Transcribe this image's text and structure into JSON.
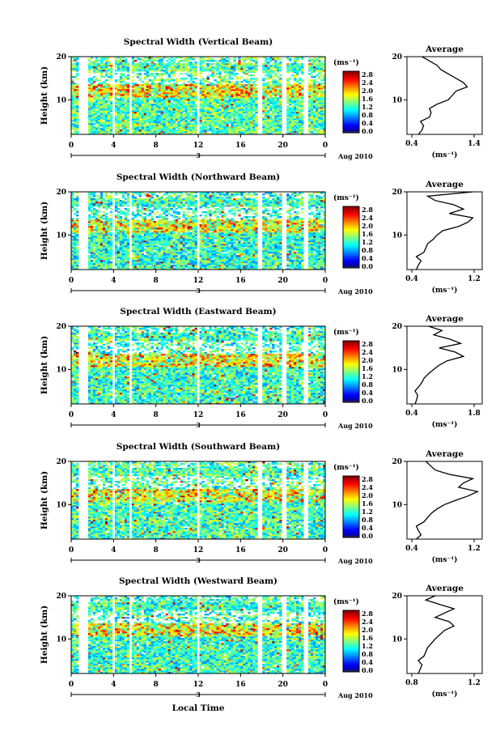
{
  "figure": {
    "common": {
      "ylabel": "Height (km)",
      "colorbar_unit": "(ms⁻¹)",
      "colorbar_ticks": [
        "0.0",
        "0.4",
        "0.8",
        "1.2",
        "1.6",
        "2.0",
        "2.4",
        "2.8"
      ],
      "x_ticks": [
        "0",
        "4",
        "8",
        "12",
        "16",
        "20",
        "0"
      ],
      "y_ticks": [
        "10",
        "20"
      ],
      "day_label": "3",
      "date_label": "Aug 2010",
      "xlabel": "Local Time",
      "avg_title": "Average",
      "avg_unit": "(ms⁻¹)"
    }
  },
  "chart_data": [
    {
      "type": "heatmap",
      "title": "Spectral Width (Vertical Beam)",
      "ylabel": "Height (km)",
      "xlim": [
        0,
        24
      ],
      "ylim": [
        2,
        20
      ],
      "clim": [
        0.0,
        3.0
      ],
      "colormap": "jet",
      "data_gaps_hours": [
        [
          0.8,
          1.6
        ],
        [
          3.9,
          4.2
        ],
        [
          5.4,
          5.8
        ],
        [
          11.8,
          12.2
        ],
        [
          17.6,
          18.0
        ],
        [
          19.8,
          20.4
        ],
        [
          22.0,
          22.3
        ]
      ],
      "mean_level": 0.45,
      "average_profile": {
        "title": "Average",
        "xlabel": "(ms⁻¹)",
        "x_ticks": [
          "0.4",
          "1.4"
        ],
        "xlim": [
          0.4,
          1.4
        ],
        "ylim": [
          2,
          20
        ],
        "heights": [
          2,
          3,
          4,
          5,
          6,
          7,
          8,
          9,
          10,
          11,
          12,
          13,
          14,
          15,
          16,
          17,
          18,
          19,
          20
        ],
        "values": [
          0.55,
          0.6,
          0.62,
          0.58,
          0.7,
          0.72,
          0.7,
          0.8,
          0.95,
          1.0,
          1.05,
          1.2,
          1.15,
          1.05,
          0.95,
          0.85,
          0.8,
          0.7,
          0.6
        ]
      }
    },
    {
      "type": "heatmap",
      "title": "Spectral Width (Northward Beam)",
      "ylabel": "Height (km)",
      "xlim": [
        0,
        24
      ],
      "ylim": [
        2,
        20
      ],
      "clim": [
        0.0,
        3.0
      ],
      "colormap": "jet",
      "data_gaps_hours": [
        [
          0.8,
          1.6
        ],
        [
          3.9,
          4.2
        ],
        [
          5.4,
          5.8
        ],
        [
          11.8,
          12.2
        ],
        [
          17.6,
          18.0
        ],
        [
          19.8,
          20.4
        ],
        [
          22.0,
          22.3
        ]
      ],
      "mean_level": 0.42,
      "average_profile": {
        "title": "Average",
        "xlabel": "(ms⁻¹)",
        "x_ticks": [
          "0.4",
          "1.2"
        ],
        "xlim": [
          0.4,
          1.2
        ],
        "ylim": [
          2,
          20
        ],
        "heights": [
          2,
          3,
          4,
          5,
          6,
          7,
          8,
          9,
          10,
          11,
          12,
          13,
          14,
          15,
          16,
          17,
          18,
          19,
          20
        ],
        "values": [
          0.5,
          0.52,
          0.55,
          0.5,
          0.58,
          0.6,
          0.62,
          0.68,
          0.72,
          0.78,
          0.95,
          1.05,
          1.1,
          0.85,
          1.0,
          0.9,
          0.7,
          0.62,
          1.1
        ]
      }
    },
    {
      "type": "heatmap",
      "title": "Spectral Width (Eastward Beam)",
      "ylabel": "Height (km)",
      "xlim": [
        0,
        24
      ],
      "ylim": [
        2,
        20
      ],
      "clim": [
        0.0,
        3.0
      ],
      "colormap": "jet",
      "data_gaps_hours": [
        [
          0.8,
          1.6
        ],
        [
          3.9,
          4.2
        ],
        [
          5.4,
          5.8
        ],
        [
          11.8,
          12.2
        ],
        [
          17.6,
          18.0
        ],
        [
          19.8,
          20.4
        ],
        [
          22.0,
          22.3
        ]
      ],
      "mean_level": 0.43,
      "average_profile": {
        "title": "Average",
        "xlabel": "(ms⁻¹)",
        "x_ticks": [
          "0.4",
          "1.8"
        ],
        "xlim": [
          0.4,
          1.8
        ],
        "ylim": [
          2,
          20
        ],
        "heights": [
          2,
          3,
          4,
          5,
          6,
          7,
          8,
          9,
          10,
          11,
          12,
          13,
          14,
          15,
          16,
          17,
          18,
          19,
          20
        ],
        "values": [
          0.55,
          0.58,
          0.6,
          0.55,
          0.62,
          0.68,
          0.72,
          0.8,
          0.9,
          1.0,
          1.15,
          1.45,
          1.3,
          1.0,
          1.4,
          1.2,
          0.9,
          1.05,
          0.8
        ]
      }
    },
    {
      "type": "heatmap",
      "title": "Spectral Width (Southward Beam)",
      "ylabel": "Height (km)",
      "xlim": [
        0,
        24
      ],
      "ylim": [
        2,
        20
      ],
      "clim": [
        0.0,
        3.0
      ],
      "colormap": "jet",
      "data_gaps_hours": [
        [
          0.8,
          1.6
        ],
        [
          3.9,
          4.2
        ],
        [
          5.4,
          5.8
        ],
        [
          11.8,
          12.2
        ],
        [
          17.6,
          18.0
        ],
        [
          19.8,
          20.4
        ],
        [
          22.0,
          22.3
        ]
      ],
      "mean_level": 0.44,
      "average_profile": {
        "title": "Average",
        "xlabel": "(ms⁻¹)",
        "x_ticks": [
          "0.4",
          "1.2"
        ],
        "xlim": [
          0.4,
          1.2
        ],
        "ylim": [
          2,
          20
        ],
        "heights": [
          2,
          3,
          4,
          5,
          6,
          7,
          8,
          9,
          10,
          11,
          12,
          13,
          14,
          15,
          16,
          17,
          18,
          19,
          20
        ],
        "values": [
          0.5,
          0.55,
          0.52,
          0.5,
          0.58,
          0.62,
          0.66,
          0.72,
          0.8,
          0.92,
          1.05,
          1.15,
          0.95,
          1.0,
          1.1,
          0.85,
          0.7,
          0.65,
          0.6
        ]
      }
    },
    {
      "type": "heatmap",
      "title": "Spectral Width (Westward Beam)",
      "ylabel": "Height (km)",
      "xlabel": "Local Time",
      "xlim": [
        0,
        24
      ],
      "ylim": [
        2,
        20
      ],
      "clim": [
        0.0,
        3.0
      ],
      "colormap": "jet",
      "data_gaps_hours": [
        [
          0.8,
          1.6
        ],
        [
          3.9,
          4.2
        ],
        [
          5.4,
          5.8
        ],
        [
          11.8,
          12.2
        ],
        [
          17.6,
          18.0
        ],
        [
          19.8,
          20.4
        ],
        [
          22.0,
          22.3
        ]
      ],
      "mean_level": 0.43,
      "average_profile": {
        "title": "Average",
        "xlabel": "(ms⁻¹)",
        "x_ticks": [
          "0.8",
          "1.2"
        ],
        "xlim": [
          0.6,
          1.4
        ],
        "ylim": [
          2,
          20
        ],
        "heights": [
          2,
          3,
          4,
          5,
          6,
          7,
          8,
          9,
          10,
          11,
          12,
          13,
          14,
          15,
          16,
          17,
          18,
          19,
          20
        ],
        "values": [
          0.72,
          0.74,
          0.76,
          0.72,
          0.78,
          0.8,
          0.82,
          0.86,
          0.9,
          0.95,
          1.0,
          1.1,
          1.05,
          0.9,
          1.0,
          1.1,
          0.95,
          0.8,
          0.9
        ]
      }
    }
  ]
}
